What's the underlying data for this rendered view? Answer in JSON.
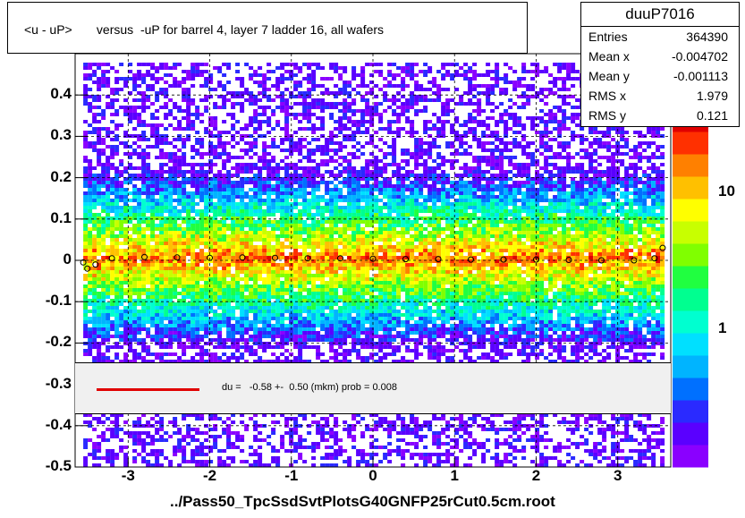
{
  "chart_data": {
    "type": "heatmap",
    "title": "<u - uP>       versus  -uP for barrel 4, layer 7 ladder 16, all wafers",
    "xlim": [
      -3.65,
      3.65
    ],
    "ylim": [
      -0.5,
      0.5
    ],
    "x_ticks": [
      "-3",
      "-2",
      "-1",
      "0",
      "1",
      "2",
      "3"
    ],
    "x_tick_values": [
      -3,
      -2,
      -1,
      0,
      1,
      2,
      3
    ],
    "y_ticks": [
      "-0.5",
      "-0.4",
      "-0.3",
      "-0.2",
      "-0.1",
      "0",
      "0.1",
      "0.2",
      "0.3",
      "0.4"
    ],
    "y_tick_values": [
      -0.5,
      -0.4,
      -0.3,
      -0.2,
      -0.1,
      0,
      0.1,
      0.2,
      0.3,
      0.4
    ],
    "z_scale": "log",
    "z_ticks": [
      "1",
      "10"
    ],
    "z_tick_values": [
      1,
      10
    ],
    "grid": true,
    "profile_points": [
      {
        "x": -3.55,
        "y": -0.005
      },
      {
        "x": -3.5,
        "y": -0.02
      },
      {
        "x": -3.4,
        "y": -0.01
      },
      {
        "x": -3.2,
        "y": 0.005
      },
      {
        "x": -2.8,
        "y": 0.008
      },
      {
        "x": -2.4,
        "y": 0.007
      },
      {
        "x": -2.0,
        "y": 0.006
      },
      {
        "x": -1.6,
        "y": 0.007
      },
      {
        "x": -1.2,
        "y": 0.006
      },
      {
        "x": -0.8,
        "y": 0.005
      },
      {
        "x": -0.4,
        "y": 0.005
      },
      {
        "x": 0.0,
        "y": 0.004
      },
      {
        "x": 0.4,
        "y": 0.003
      },
      {
        "x": 0.8,
        "y": 0.003
      },
      {
        "x": 1.2,
        "y": 0.002
      },
      {
        "x": 1.6,
        "y": 0.002
      },
      {
        "x": 2.0,
        "y": 0.002
      },
      {
        "x": 2.4,
        "y": 0.001
      },
      {
        "x": 2.8,
        "y": 0.0
      },
      {
        "x": 3.2,
        "y": 0.0
      },
      {
        "x": 3.45,
        "y": 0.005
      },
      {
        "x": 3.55,
        "y": 0.03
      }
    ],
    "stats": {
      "name": "duuP7016",
      "entries": "364390",
      "mean_x": "-0.004702",
      "mean_y": "-0.001113",
      "rms_x": "1.979",
      "rms_y": "0.121"
    },
    "fit_label": "du =   -0.58 +-  0.50 (mkm) prob = 0.008",
    "xlabel": "../Pass50_TpcSsdSvtPlotsG40GNFP25rCut0.5cm.root"
  },
  "colors": {
    "fit_line": "#e00000",
    "palette": [
      "#8a00ff",
      "#5a00ff",
      "#2a2aff",
      "#0070ff",
      "#00b4ff",
      "#00e0ff",
      "#00ffd0",
      "#00ff90",
      "#20ff40",
      "#80ff00",
      "#c8ff00",
      "#ffff00",
      "#ffc000",
      "#ff8000",
      "#ff3000",
      "#e00000"
    ]
  }
}
